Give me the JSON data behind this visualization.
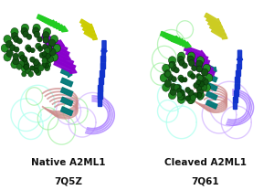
{
  "left_label_line1": "Native A2ML1",
  "left_label_line2": "7Q5Z",
  "right_label_line1": "Cleaved A2ML1",
  "right_label_line2": "7Q61",
  "label_fontsize": 7.5,
  "background_color": "#ffffff",
  "figsize": [
    3.0,
    2.08
  ],
  "dpi": 100
}
